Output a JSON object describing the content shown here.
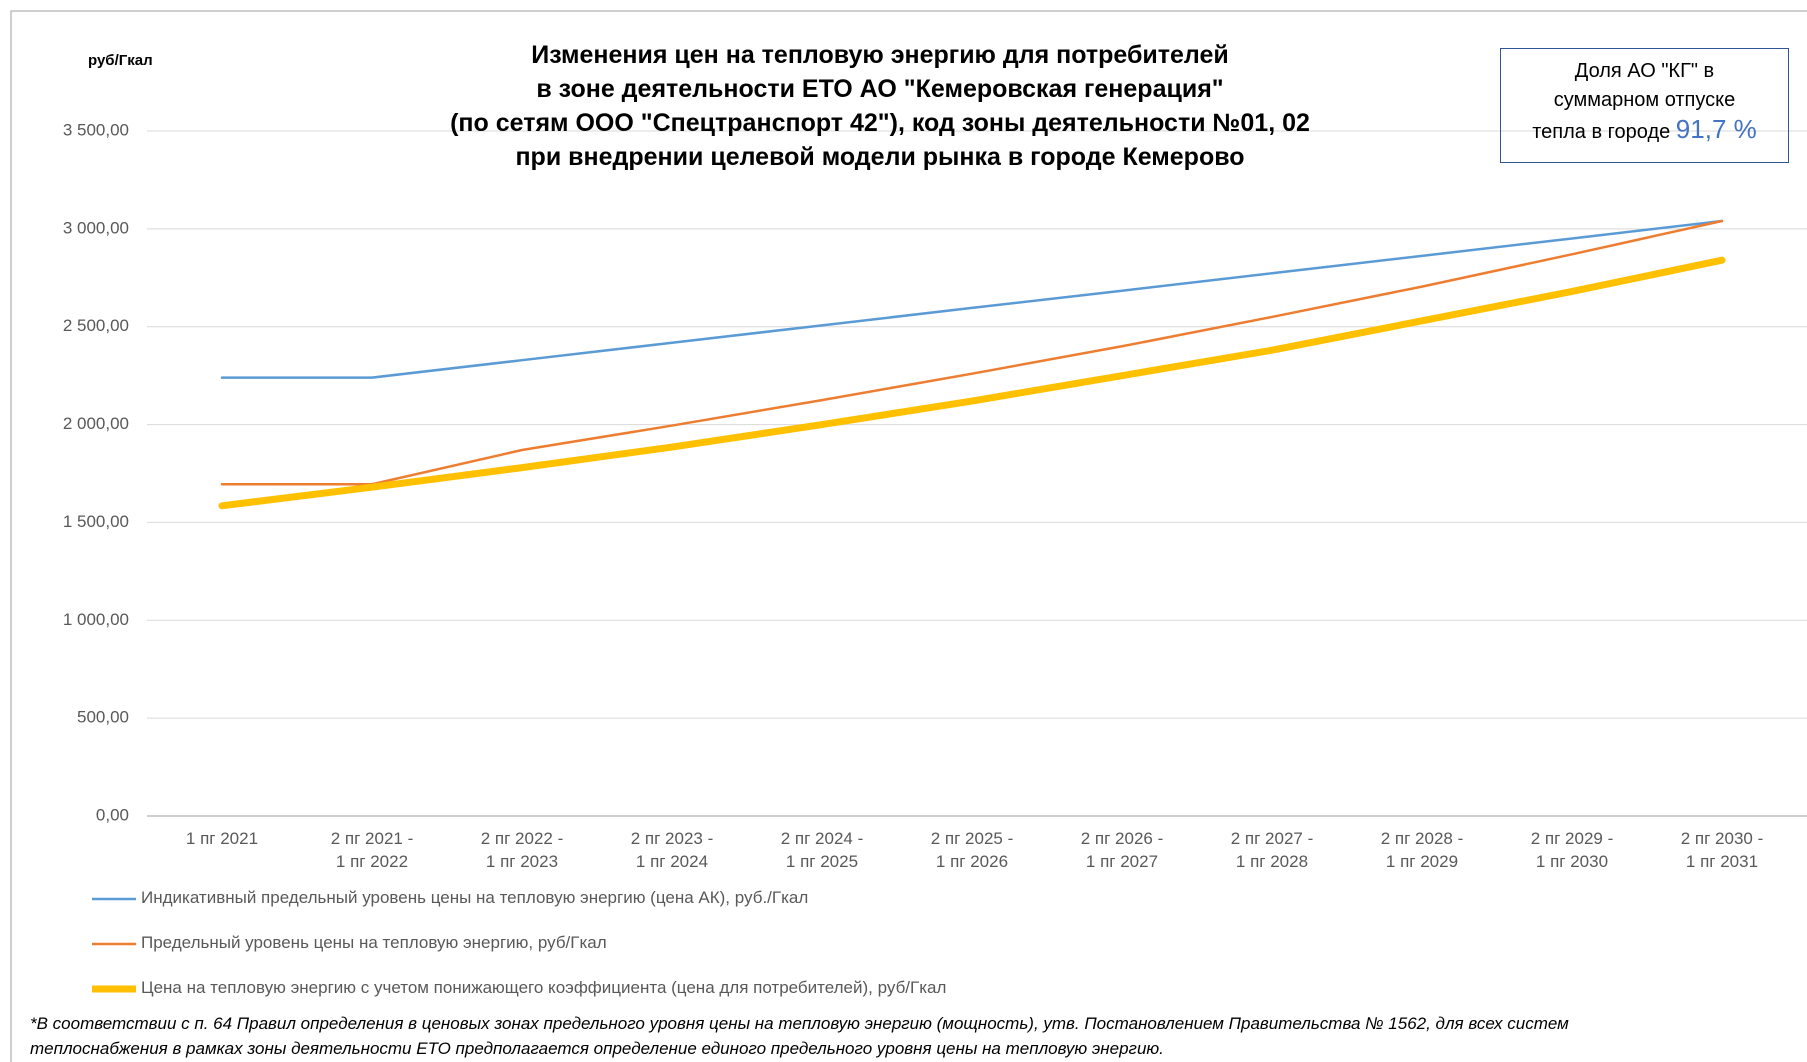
{
  "chart_data": {
    "type": "line",
    "title": "Изменения цен на тепловую энергию для потребителей\nв зоне деятельности ЕТО АО \"Кемеровская генерация\"\n(по сетям ООО \"Спецтранспорт 42\"), код зоны деятельности №01, 02\nпри внедрении целевой модели рынка в городе Кемерово",
    "y_label": "руб/Гкал",
    "share_box": {
      "text": "Доля  АО \"КГ\" в\nсуммарном отпуске\nтепла в городе",
      "value": "91,7 %"
    },
    "categories": [
      "1 пг 2021",
      "2 пг 2021 -\n1 пг 2022",
      "2 пг 2022 -\n1 пг 2023",
      "2 пг 2023 -\n1 пг 2024",
      "2 пг 2024 -\n1 пг 2025",
      "2 пг 2025 -\n1 пг 2026",
      "2 пг 2026 -\n1 пг 2027",
      "2 пг 2027 -\n1 пг 2028",
      "2 пг 2028 -\n1 пг 2029",
      "2 пг 2029 -\n1 пг 2030",
      "2 пг 2030 -\n1 пг 2031"
    ],
    "series": [
      {
        "name": "Индикативный предельный уровень цены на тепловую энергию  (цена АК), руб./Гкал",
        "color": "#5b9bd5",
        "width": 2.5,
        "values": [
          2240,
          2240,
          2329,
          2418,
          2507,
          2596,
          2684,
          2773,
          2862,
          2951,
          3040
        ]
      },
      {
        "name": "Предельный уровень цены на тепловую энергию, руб/Гкал",
        "color": "#ed7d31",
        "width": 2.5,
        "values": [
          1695,
          1695,
          1870,
          1995,
          2125,
          2260,
          2400,
          2550,
          2705,
          2870,
          3040
        ]
      },
      {
        "name": "Цена на тепловую энергию с учетом понижающего коэффициента (цена для потребителей), руб/Гкал",
        "color": "#ffc000",
        "width": 7,
        "values": [
          1585,
          1680,
          1780,
          1885,
          2000,
          2120,
          2250,
          2380,
          2530,
          2680,
          2840
        ]
      }
    ],
    "ylim": [
      0,
      3500
    ],
    "yticks": [
      {
        "value": 0,
        "label": "0,00"
      },
      {
        "value": 500,
        "label": "500,00"
      },
      {
        "value": 1000,
        "label": "1 000,00"
      },
      {
        "value": 1500,
        "label": "1 500,00"
      },
      {
        "value": 2000,
        "label": "2 000,00"
      },
      {
        "value": 2500,
        "label": "2 500,00"
      },
      {
        "value": 3000,
        "label": "3 000,00"
      },
      {
        "value": 3500,
        "label": "3 500,00"
      }
    ],
    "grid": true,
    "footnote": "*В соответствии с п. 64 Правил определения в ценовых зонах предельного уровня цены на тепловую энергию (мощность), утв. Постановлением Правительства № 1562, для всех систем\nтеплоснабжения в рамках зоны деятельности ЕТО предполагается определение единого предельного уровня цены на тепловую энергию."
  }
}
